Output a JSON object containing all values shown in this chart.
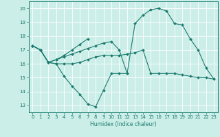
{
  "xlabel": "Humidex (Indice chaleur)",
  "ylabel": "",
  "background_color": "#cceee8",
  "grid_color": "#ffffff",
  "line_color": "#1a7a6e",
  "xlim": [
    -0.5,
    23.5
  ],
  "ylim": [
    12.5,
    20.5
  ],
  "yticks": [
    13,
    14,
    15,
    16,
    17,
    18,
    19,
    20
  ],
  "xticks": [
    0,
    1,
    2,
    3,
    4,
    5,
    6,
    7,
    8,
    9,
    10,
    11,
    12,
    13,
    14,
    15,
    16,
    17,
    18,
    19,
    20,
    21,
    22,
    23
  ],
  "series": [
    [
      17.3,
      17.0,
      16.1,
      16.0,
      15.1,
      14.4,
      13.8,
      13.1,
      12.9,
      14.1,
      15.3,
      15.3,
      15.3,
      null,
      null,
      null,
      null,
      null,
      null,
      null,
      null,
      null,
      null,
      null
    ],
    [
      17.3,
      17.0,
      16.1,
      16.0,
      16.0,
      16.0,
      16.1,
      16.3,
      16.5,
      16.6,
      16.6,
      16.6,
      16.7,
      16.8,
      17.0,
      15.3,
      15.3,
      15.3,
      15.3,
      15.2,
      15.1,
      15.0,
      15.0,
      14.9
    ],
    [
      17.3,
      17.0,
      16.1,
      16.3,
      16.5,
      16.7,
      16.9,
      17.1,
      17.3,
      17.5,
      17.6,
      17.0,
      15.3,
      18.9,
      19.5,
      19.9,
      20.0,
      19.8,
      18.9,
      18.8,
      17.8,
      17.0,
      15.7,
      14.9
    ],
    [
      17.3,
      17.0,
      16.1,
      16.3,
      16.6,
      17.0,
      17.4,
      17.8,
      null,
      null,
      null,
      null,
      null,
      null,
      null,
      null,
      null,
      null,
      null,
      null,
      null,
      null,
      null,
      null
    ]
  ]
}
